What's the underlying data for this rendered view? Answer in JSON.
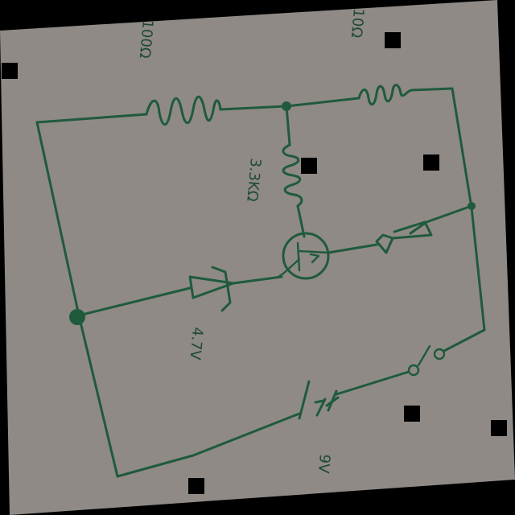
{
  "labels": {
    "r1": "100Ω",
    "r2": "10Ω",
    "r3": "3.3KΩ",
    "zener": "4.7V",
    "battery": "9V"
  },
  "colors": {
    "paper": "#8f8a86",
    "ink": "#1f5a3c",
    "background": "#000000"
  }
}
